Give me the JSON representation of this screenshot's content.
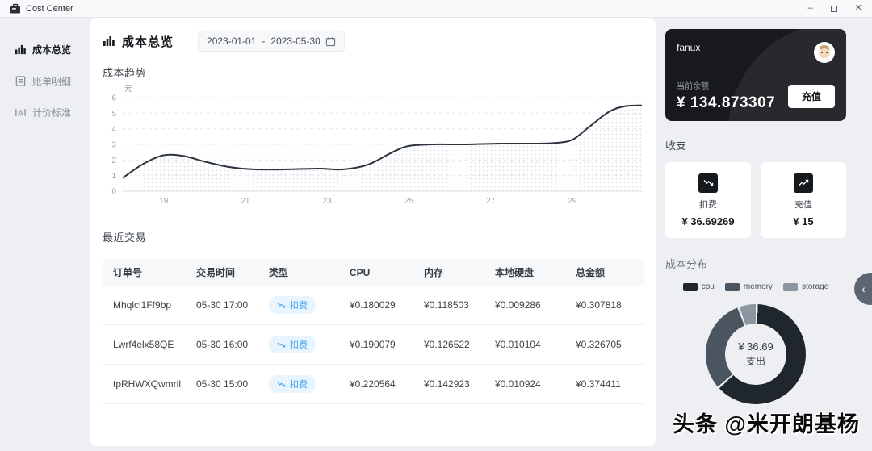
{
  "window": {
    "title": "Cost Center",
    "minimize_glyph": "–",
    "close_glyph": "✕"
  },
  "sidebar": {
    "items": [
      {
        "label": "成本总览",
        "icon": "bar-chart-icon",
        "active": true
      },
      {
        "label": "账单明细",
        "icon": "receipt-icon",
        "active": false
      },
      {
        "label": "计价标准",
        "icon": "pricing-standard-icon",
        "active": false
      }
    ]
  },
  "main": {
    "title": "成本总览",
    "date_start": "2023-01-01",
    "date_separator": "-",
    "date_end": "2023-05-30",
    "trend_title": "成本趋势",
    "transactions": {
      "title": "最近交易",
      "headers": [
        "订单号",
        "交易时间",
        "类型",
        "CPU",
        "内存",
        "本地硬盘",
        "总金额"
      ],
      "rows": [
        {
          "order_id": "Mhqlcl1Ff9bp",
          "time": "05-30 17:00",
          "type": "扣费",
          "cpu": "¥0.180029",
          "memory": "¥0.118503",
          "disk": "¥0.009286",
          "total": "¥0.307818"
        },
        {
          "order_id": "Lwrf4elx58QE",
          "time": "05-30 16:00",
          "type": "扣费",
          "cpu": "¥0.190079",
          "memory": "¥0.126522",
          "disk": "¥0.010104",
          "total": "¥0.326705"
        },
        {
          "order_id": "tpRHWXQwmril",
          "time": "05-30 15:00",
          "type": "扣费",
          "cpu": "¥0.220564",
          "memory": "¥0.142923",
          "disk": "¥0.010924",
          "total": "¥0.374411"
        }
      ]
    }
  },
  "account": {
    "name": "fanux",
    "balance_label": "当前余额",
    "balance": "¥ 134.873307",
    "recharge_button": "充值"
  },
  "income_expense": {
    "title": "收支",
    "cards": [
      {
        "label": "扣费",
        "amount": "¥ 36.69269",
        "icon": "trend-down-icon"
      },
      {
        "label": "充值",
        "amount": "¥ 15",
        "icon": "trend-up-icon"
      }
    ]
  },
  "distribution": {
    "title": "成本分布",
    "center_amount": "¥ 36.69",
    "center_label": "支出"
  },
  "watermark": "头条 @米开朗基杨",
  "colors": {
    "badge_bg": "#e9f5fe",
    "badge_text": "#41a4f2",
    "line": "#2b333e",
    "grid": "#e3e7ec",
    "tick_text": "#9aa3ad"
  },
  "chart_data": [
    {
      "type": "area",
      "title": "成本趋势",
      "ylabel": "元",
      "x": [
        18,
        18.5,
        19,
        19.5,
        20,
        20.6,
        21.2,
        22,
        22.8,
        23.4,
        24,
        24.6,
        25,
        25.6,
        26.4,
        27.2,
        28,
        28.6,
        29,
        29.4,
        29.9,
        30.3,
        30.7
      ],
      "y": [
        0.85,
        1.75,
        2.3,
        2.25,
        1.9,
        1.55,
        1.4,
        1.4,
        1.45,
        1.4,
        1.7,
        2.5,
        2.9,
        3.0,
        3.0,
        3.05,
        3.05,
        3.1,
        3.3,
        4.1,
        5.1,
        5.45,
        5.5
      ],
      "xticks": [
        19,
        21,
        23,
        25,
        27,
        29
      ],
      "yticks": [
        0,
        1,
        2,
        3,
        4,
        5,
        6
      ],
      "xlim": [
        18,
        30.7
      ],
      "ylim": [
        0,
        6
      ],
      "grid": "horizontal-dashed",
      "legend_position": "none",
      "line_color": "#2b333e"
    },
    {
      "type": "pie",
      "title": "成本分布",
      "labels": [
        "cpu",
        "memory",
        "storage"
      ],
      "values": [
        63,
        31,
        6
      ],
      "colors": [
        "#20262d",
        "#4b5560",
        "#8d96a0"
      ],
      "center_text": "¥ 36.69 支出",
      "legend_position": "top"
    }
  ]
}
